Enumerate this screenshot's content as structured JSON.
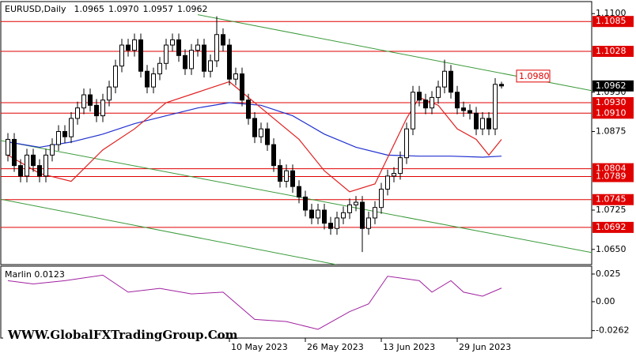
{
  "chart_data": {
    "type": "candlestick",
    "title": "EURUSD,Daily",
    "header_labels": [
      "1.0965",
      "1.0970",
      "1.0957",
      "1.0962"
    ],
    "watermark": "WWW.GlobalFXTradingGroup.Com",
    "categories": [
      null,
      null,
      null,
      null,
      null,
      null,
      null,
      null,
      null,
      null,
      null,
      null,
      null,
      null,
      null,
      null,
      null,
      null,
      null,
      null,
      null,
      null,
      null,
      null,
      null,
      null,
      null,
      null,
      null,
      null,
      null,
      null,
      null,
      null,
      null,
      "10 May 2023",
      null,
      null,
      null,
      null,
      null,
      null,
      null,
      null,
      null,
      null,
      null,
      "26 May 2023",
      null,
      null,
      null,
      null,
      null,
      null,
      null,
      null,
      null,
      null,
      null,
      "13 Jun 2023",
      null,
      null,
      null,
      null,
      null,
      null,
      null,
      null,
      null,
      null,
      null,
      "29 Jun 2023",
      null,
      null,
      null,
      null,
      null,
      null,
      null
    ],
    "open": [
      1.083,
      1.086,
      1.081,
      1.079,
      1.083,
      1.081,
      1.079,
      1.083,
      1.085,
      1.0875,
      1.0865,
      1.09,
      1.092,
      1.0945,
      1.0925,
      1.0905,
      1.0935,
      1.096,
      1.1,
      1.104,
      1.103,
      1.105,
      1.099,
      1.096,
      1.0985,
      1.1005,
      1.104,
      1.105,
      1.102,
      1.0995,
      1.103,
      1.104,
      1.099,
      1.101,
      1.106,
      1.104,
      1.0975,
      1.0985,
      1.0935,
      1.09,
      1.0865,
      1.088,
      1.085,
      1.081,
      1.078,
      1.08,
      1.077,
      1.075,
      1.0725,
      1.071,
      1.0725,
      1.07,
      1.069,
      1.071,
      1.072,
      1.0735,
      1.074,
      1.069,
      1.071,
      1.073,
      1.0765,
      1.079,
      1.0795,
      1.0825,
      1.088,
      1.095,
      1.0935,
      1.092,
      1.094,
      1.096,
      1.099,
      1.095,
      1.092,
      1.0915,
      1.091,
      1.088,
      1.09,
      1.088,
      1.0965
    ],
    "high": [
      1.0872,
      1.0872,
      1.0822,
      1.0842,
      1.0842,
      1.0822,
      1.0842,
      1.0862,
      1.0887,
      1.0887,
      1.0912,
      1.0932,
      1.0957,
      1.0957,
      1.0937,
      1.0947,
      1.0972,
      1.1012,
      1.1052,
      1.1052,
      1.1062,
      1.1062,
      1.1002,
      1.0997,
      1.1017,
      1.1052,
      1.1062,
      1.1062,
      1.1032,
      1.1042,
      1.1052,
      1.1052,
      1.1022,
      1.1095,
      1.1072,
      1.1052,
      1.0997,
      1.0997,
      1.0947,
      1.0912,
      1.0892,
      1.0892,
      1.0862,
      1.0822,
      1.0812,
      1.0812,
      1.0782,
      1.0762,
      1.0737,
      1.0737,
      1.0737,
      1.0712,
      1.0722,
      1.0732,
      1.0747,
      1.0752,
      1.0752,
      1.0722,
      1.0742,
      1.0777,
      1.0802,
      1.0807,
      1.0837,
      1.0892,
      1.0962,
      1.0962,
      1.0947,
      1.0952,
      1.0972,
      1.1012,
      1.1002,
      1.0962,
      1.0932,
      1.0927,
      1.0922,
      1.0912,
      1.0912,
      1.0977,
      1.097
    ],
    "low": [
      1.0818,
      1.0798,
      1.0778,
      1.0778,
      1.0798,
      1.0778,
      1.0778,
      1.0818,
      1.0838,
      1.0853,
      1.0853,
      1.0888,
      1.0908,
      1.0913,
      1.0893,
      1.0893,
      1.0923,
      1.0948,
      1.0988,
      1.1018,
      1.1018,
      1.0978,
      1.0948,
      1.0948,
      1.0973,
      1.0993,
      1.1028,
      1.1008,
      1.0983,
      1.0983,
      1.1018,
      1.0978,
      1.0978,
      1.0998,
      1.1028,
      1.0963,
      1.0963,
      1.0923,
      1.0888,
      1.0853,
      1.0853,
      1.0838,
      1.0798,
      1.0768,
      1.0768,
      1.0758,
      1.0738,
      1.0713,
      1.0698,
      1.0698,
      1.0688,
      1.0678,
      1.0678,
      1.0698,
      1.0708,
      1.0723,
      1.0645,
      1.0678,
      1.0698,
      1.0718,
      1.0753,
      1.0778,
      1.0783,
      1.0813,
      1.0868,
      1.0923,
      1.0908,
      1.0908,
      1.0928,
      1.0948,
      1.0938,
      1.0908,
      1.0903,
      1.0898,
      1.0868,
      1.0868,
      1.0868,
      1.0868,
      1.0957
    ],
    "close": [
      1.086,
      1.081,
      1.079,
      1.083,
      1.081,
      1.079,
      1.083,
      1.085,
      1.0875,
      1.0865,
      1.09,
      1.092,
      1.0945,
      1.0925,
      1.0905,
      1.0935,
      1.096,
      1.1,
      1.104,
      1.103,
      1.105,
      1.099,
      1.096,
      1.0985,
      1.1005,
      1.104,
      1.105,
      1.102,
      1.0995,
      1.103,
      1.104,
      1.099,
      1.101,
      1.106,
      1.104,
      1.0975,
      1.0985,
      1.0935,
      1.09,
      1.0865,
      1.088,
      1.085,
      1.081,
      1.078,
      1.08,
      1.077,
      1.075,
      1.0725,
      1.071,
      1.0725,
      1.07,
      1.069,
      1.071,
      1.072,
      1.0735,
      1.074,
      1.069,
      1.071,
      1.073,
      1.0765,
      1.079,
      1.0795,
      1.0825,
      1.088,
      1.095,
      1.0935,
      1.092,
      1.094,
      1.096,
      1.099,
      1.095,
      1.092,
      1.0915,
      1.091,
      1.088,
      1.09,
      1.088,
      1.0965,
      1.0962
    ],
    "bull_color": "#ffffff",
    "bear_color": "#000000",
    "ylim": [
      1.0621,
      1.1126
    ],
    "yticks": [
      {
        "value": 1.11,
        "label": "1.1100"
      },
      {
        "value": 1.095,
        "label": "1.0950"
      },
      1.0875,
      1.0725,
      {
        "value": 1.065,
        "label": "1.0650"
      }
    ],
    "current_price_label": "1.0962",
    "levels": [
      {
        "value": 1.1085,
        "label": "1.1085"
      },
      {
        "value": 1.1028,
        "label": "1.1028"
      },
      {
        "value": 1.093,
        "label": "1.0930"
      },
      {
        "value": 1.091,
        "label": "1.0910"
      },
      {
        "value": 1.0804,
        "label": "1.0804"
      },
      {
        "value": 1.0789,
        "label": "1.0789"
      },
      {
        "value": 1.0745,
        "label": "1.0745"
      },
      {
        "value": 1.0692,
        "label": "1.0692"
      }
    ],
    "level_color": "#e00000",
    "annotations": [
      {
        "value": 1.098,
        "label": "1.0980"
      }
    ],
    "trendlines": [
      {
        "color": "#3a9a3a",
        "x": [
          30,
          92.25
        ],
        "y": [
          1.1098,
          1.0953
        ]
      },
      {
        "color": "#3a9a3a",
        "x": [
          -1.25,
          92.25
        ],
        "y": [
          1.0858,
          1.0644
        ]
      },
      {
        "color": "#3a9a3a",
        "x": [
          -1.25,
          51.9
        ],
        "y": [
          1.0746,
          1.0621
        ]
      }
    ],
    "moving_averages": [
      {
        "color": "#2030d0",
        "x": [
          0,
          5,
          10,
          15,
          20,
          25,
          30,
          35,
          40,
          45,
          50,
          55,
          60,
          65,
          70,
          75,
          78
        ],
        "y": [
          1.0855,
          1.0845,
          1.0855,
          1.087,
          1.089,
          1.0905,
          1.092,
          1.093,
          1.0925,
          1.0905,
          1.087,
          1.0845,
          1.083,
          1.0828,
          1.0828,
          1.0826,
          1.0828
        ]
      },
      {
        "color": "#e02020",
        "x": [
          0,
          5,
          10,
          15,
          20,
          25,
          30,
          35,
          38,
          42,
          46,
          50,
          54,
          58,
          61,
          63,
          65,
          68,
          71,
          74,
          76,
          78
        ],
        "y": [
          1.083,
          1.0795,
          1.078,
          1.084,
          1.088,
          1.093,
          1.095,
          1.097,
          1.094,
          1.09,
          1.086,
          1.08,
          1.076,
          1.0775,
          1.085,
          1.09,
          1.094,
          1.0925,
          1.088,
          1.086,
          1.083,
          1.086
        ]
      }
    ],
    "oscillator": {
      "title": "Marlin 0.0123",
      "color": "#a020a0",
      "x": [
        0,
        4,
        9,
        15,
        19,
        24,
        29,
        34,
        39,
        44,
        49,
        54,
        57,
        60,
        65,
        67,
        70,
        72,
        75,
        78
      ],
      "values": [
        0.019,
        0.016,
        0.019,
        0.024,
        0.0086,
        0.012,
        0.007,
        0.0086,
        -0.016,
        -0.018,
        -0.025,
        -0.009,
        -0.002,
        0.023,
        0.019,
        0.0086,
        0.019,
        0.0086,
        0.005,
        0.0123
      ],
      "ylim": [
        -0.0329,
        0.0314
      ],
      "yticks": [
        0.025,
        {
          "value": 0,
          "label": "0.00"
        },
        -0.0262
      ]
    }
  }
}
